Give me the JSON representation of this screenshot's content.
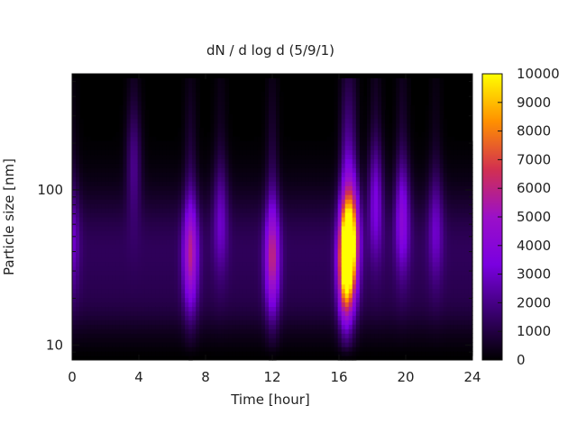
{
  "chart_data": {
    "type": "heatmap",
    "title": "dN / d log d (5/9/1)",
    "xlabel": "Time [hour]",
    "ylabel": "Particle size [nm]",
    "x_ticks": [
      "0",
      "4",
      "8",
      "12",
      "16",
      "20",
      "24"
    ],
    "x_tick_values": [
      0,
      4,
      8,
      12,
      16,
      20,
      24
    ],
    "xlim": [
      0,
      24
    ],
    "y_scale": "log",
    "y_ticks": [
      "10",
      "100"
    ],
    "y_tick_values": [
      10,
      100
    ],
    "ylim": [
      8,
      560
    ],
    "colorbar": {
      "range": [
        0,
        10000
      ],
      "ticks": [
        "0",
        "1000",
        "2000",
        "3000",
        "4000",
        "5000",
        "6000",
        "7000",
        "8000",
        "9000",
        "10000"
      ],
      "tick_values": [
        0,
        1000,
        2000,
        3000,
        4000,
        5000,
        6000,
        7000,
        8000,
        9000,
        10000
      ],
      "palette": [
        "#000000",
        "#3a0070",
        "#7a00e0",
        "#9b10c8",
        "#d23050",
        "#ff9000",
        "#ffff00"
      ]
    },
    "features": [
      {
        "time": 0,
        "size": 50,
        "value": 1600
      },
      {
        "time": 3.7,
        "size": 150,
        "value": 1700
      },
      {
        "time": 7.1,
        "size": 38,
        "value": 4000
      },
      {
        "time": 8.9,
        "size": 70,
        "value": 1800
      },
      {
        "time": 12.0,
        "size": 36,
        "value": 4200
      },
      {
        "time": 16.4,
        "size": 35,
        "value": 9200
      },
      {
        "time": 16.8,
        "size": 48,
        "value": 6000
      },
      {
        "time": 18.2,
        "size": 90,
        "value": 2500
      },
      {
        "time": 19.8,
        "size": 70,
        "value": 2800
      },
      {
        "time": 21.8,
        "size": 60,
        "value": 1700
      }
    ]
  }
}
